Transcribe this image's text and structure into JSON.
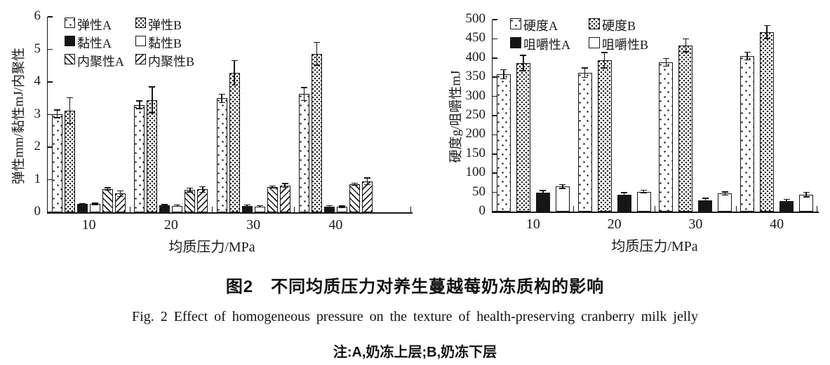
{
  "figure": {
    "caption_zh": "图2　不同均质压力对养生蔓越莓奶冻质构的影响",
    "caption_en": "Fig. 2   Effect of homogeneous pressure on the texture of health-preserving cranberry milk jelly",
    "note": "注:A,奶冻上层;B,奶冻下层"
  },
  "chart_data": [
    {
      "type": "bar",
      "title": "",
      "xlabel": "均质压力/MPa",
      "ylabel": "弹性mm/黏性mJ/内聚性",
      "categories": [
        "10",
        "20",
        "30",
        "40"
      ],
      "ylim": [
        0,
        6
      ],
      "yticks": [
        0,
        1,
        2,
        3,
        4,
        5,
        6
      ],
      "grid": false,
      "legend_position": "top-left-inside",
      "series": [
        {
          "name": "弹性A",
          "pattern": "dots-sparse",
          "values": [
            3.02,
            3.3,
            3.5,
            3.63
          ],
          "errors": [
            0.12,
            0.12,
            0.13,
            0.2
          ]
        },
        {
          "name": "弹性B",
          "pattern": "dots-dense",
          "values": [
            3.12,
            3.45,
            4.28,
            4.87
          ],
          "errors": [
            0.4,
            0.4,
            0.38,
            0.35
          ]
        },
        {
          "name": "黏性A",
          "pattern": "solid-black",
          "values": [
            0.25,
            0.22,
            0.2,
            0.18
          ],
          "errors": [
            0.02,
            0.02,
            0.02,
            0.02
          ]
        },
        {
          "name": "黏性B",
          "pattern": "solid-white",
          "values": [
            0.26,
            0.2,
            0.18,
            0.17
          ],
          "errors": [
            0.02,
            0.02,
            0.02,
            0.02
          ]
        },
        {
          "name": "内聚性A",
          "pattern": "hatch-backslash",
          "values": [
            0.72,
            0.68,
            0.78,
            0.86
          ],
          "errors": [
            0.03,
            0.06,
            0.03,
            0.03
          ]
        },
        {
          "name": "内聚性B",
          "pattern": "hatch-slash",
          "values": [
            0.57,
            0.7,
            0.82,
            0.95
          ],
          "errors": [
            0.08,
            0.09,
            0.06,
            0.1
          ]
        }
      ]
    },
    {
      "type": "bar",
      "title": "",
      "xlabel": "均质压力/MPa",
      "ylabel": "硬度g/咀嚼性mJ",
      "categories": [
        "10",
        "20",
        "30",
        "40"
      ],
      "ylim": [
        0,
        500
      ],
      "yticks": [
        0,
        50,
        100,
        150,
        200,
        250,
        300,
        350,
        400,
        450,
        500
      ],
      "grid": false,
      "legend_position": "top-left-inside",
      "series": [
        {
          "name": "硬度A",
          "pattern": "dots-sparse",
          "values": [
            358,
            362,
            389,
            405
          ],
          "errors": [
            12,
            12,
            10,
            10
          ]
        },
        {
          "name": "硬度B",
          "pattern": "dots-dense",
          "values": [
            387,
            394,
            433,
            468
          ],
          "errors": [
            20,
            20,
            17,
            17
          ]
        },
        {
          "name": "咀嚼性A",
          "pattern": "solid-black",
          "values": [
            50,
            44,
            30,
            27
          ],
          "errors": [
            5,
            5,
            5,
            5
          ]
        },
        {
          "name": "咀嚼性B",
          "pattern": "solid-white",
          "values": [
            65,
            52,
            47,
            44
          ],
          "errors": [
            5,
            4,
            4,
            6
          ]
        }
      ]
    }
  ]
}
